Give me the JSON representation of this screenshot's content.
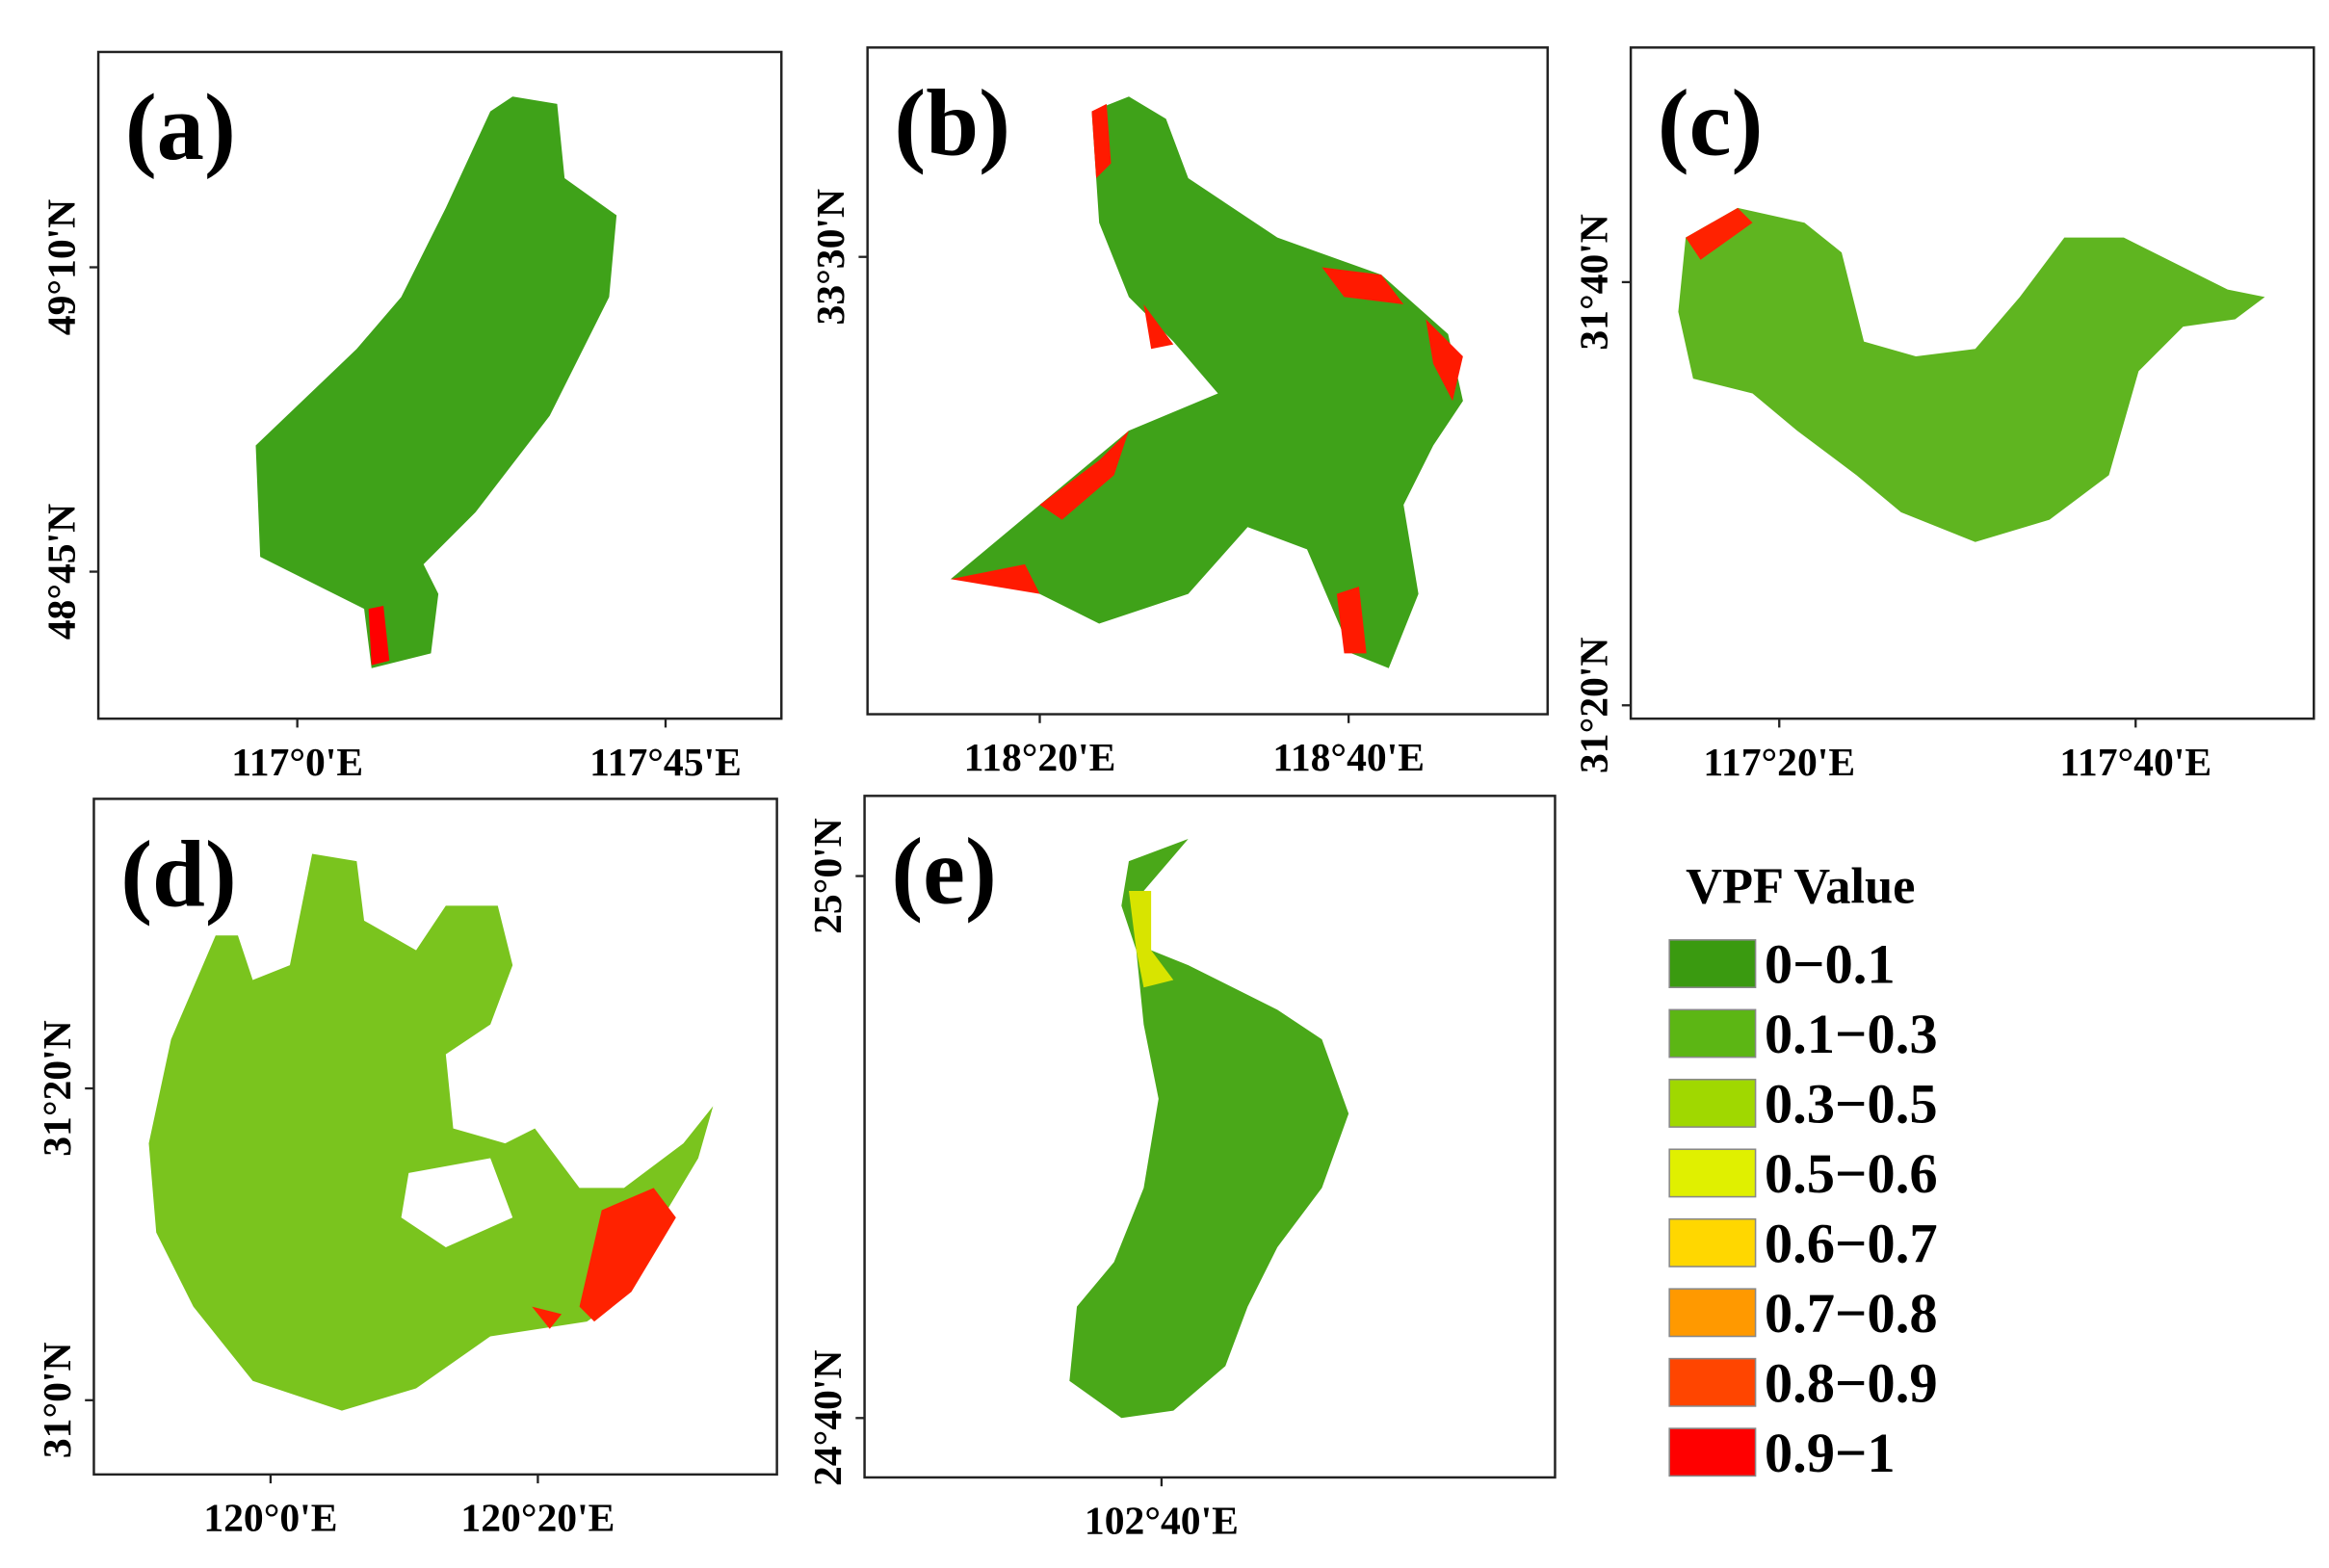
{
  "panels": [
    {
      "label": "(a)",
      "x_ticks": [
        "117°0'E",
        "117°45'E"
      ],
      "y_ticks": [
        "49°10'N",
        "48°45'N"
      ]
    },
    {
      "label": "(b)",
      "x_ticks": [
        "118°20'E",
        "118°40'E"
      ],
      "y_ticks": [
        "33°30'N"
      ]
    },
    {
      "label": "(c)",
      "x_ticks": [
        "117°20'E",
        "117°40'E"
      ],
      "y_ticks": [
        "31°40'N",
        "31°20'N"
      ]
    },
    {
      "label": "(d)",
      "x_ticks": [
        "120°0'E",
        "120°20'E"
      ],
      "y_ticks": [
        "31°20'N",
        "31°0'N"
      ]
    },
    {
      "label": "(e)",
      "x_ticks": [
        "102°40'E"
      ],
      "y_ticks": [
        "25°0'N",
        "24°40'N"
      ]
    }
  ],
  "legend": {
    "title": "VPF Value",
    "items": [
      {
        "label": "0−0.1",
        "color": "#3a9a10"
      },
      {
        "label": "0.1−0.3",
        "color": "#5cb614"
      },
      {
        "label": "0.3−0.5",
        "color": "#a0d800"
      },
      {
        "label": "0.5−0.6",
        "color": "#e0f000"
      },
      {
        "label": "0.6−0.7",
        "color": "#ffd700"
      },
      {
        "label": "0.7−0.8",
        "color": "#ff9900"
      },
      {
        "label": "0.8−0.9",
        "color": "#ff4500"
      },
      {
        "label": "0.9−1",
        "color": "#ff0000"
      }
    ]
  }
}
